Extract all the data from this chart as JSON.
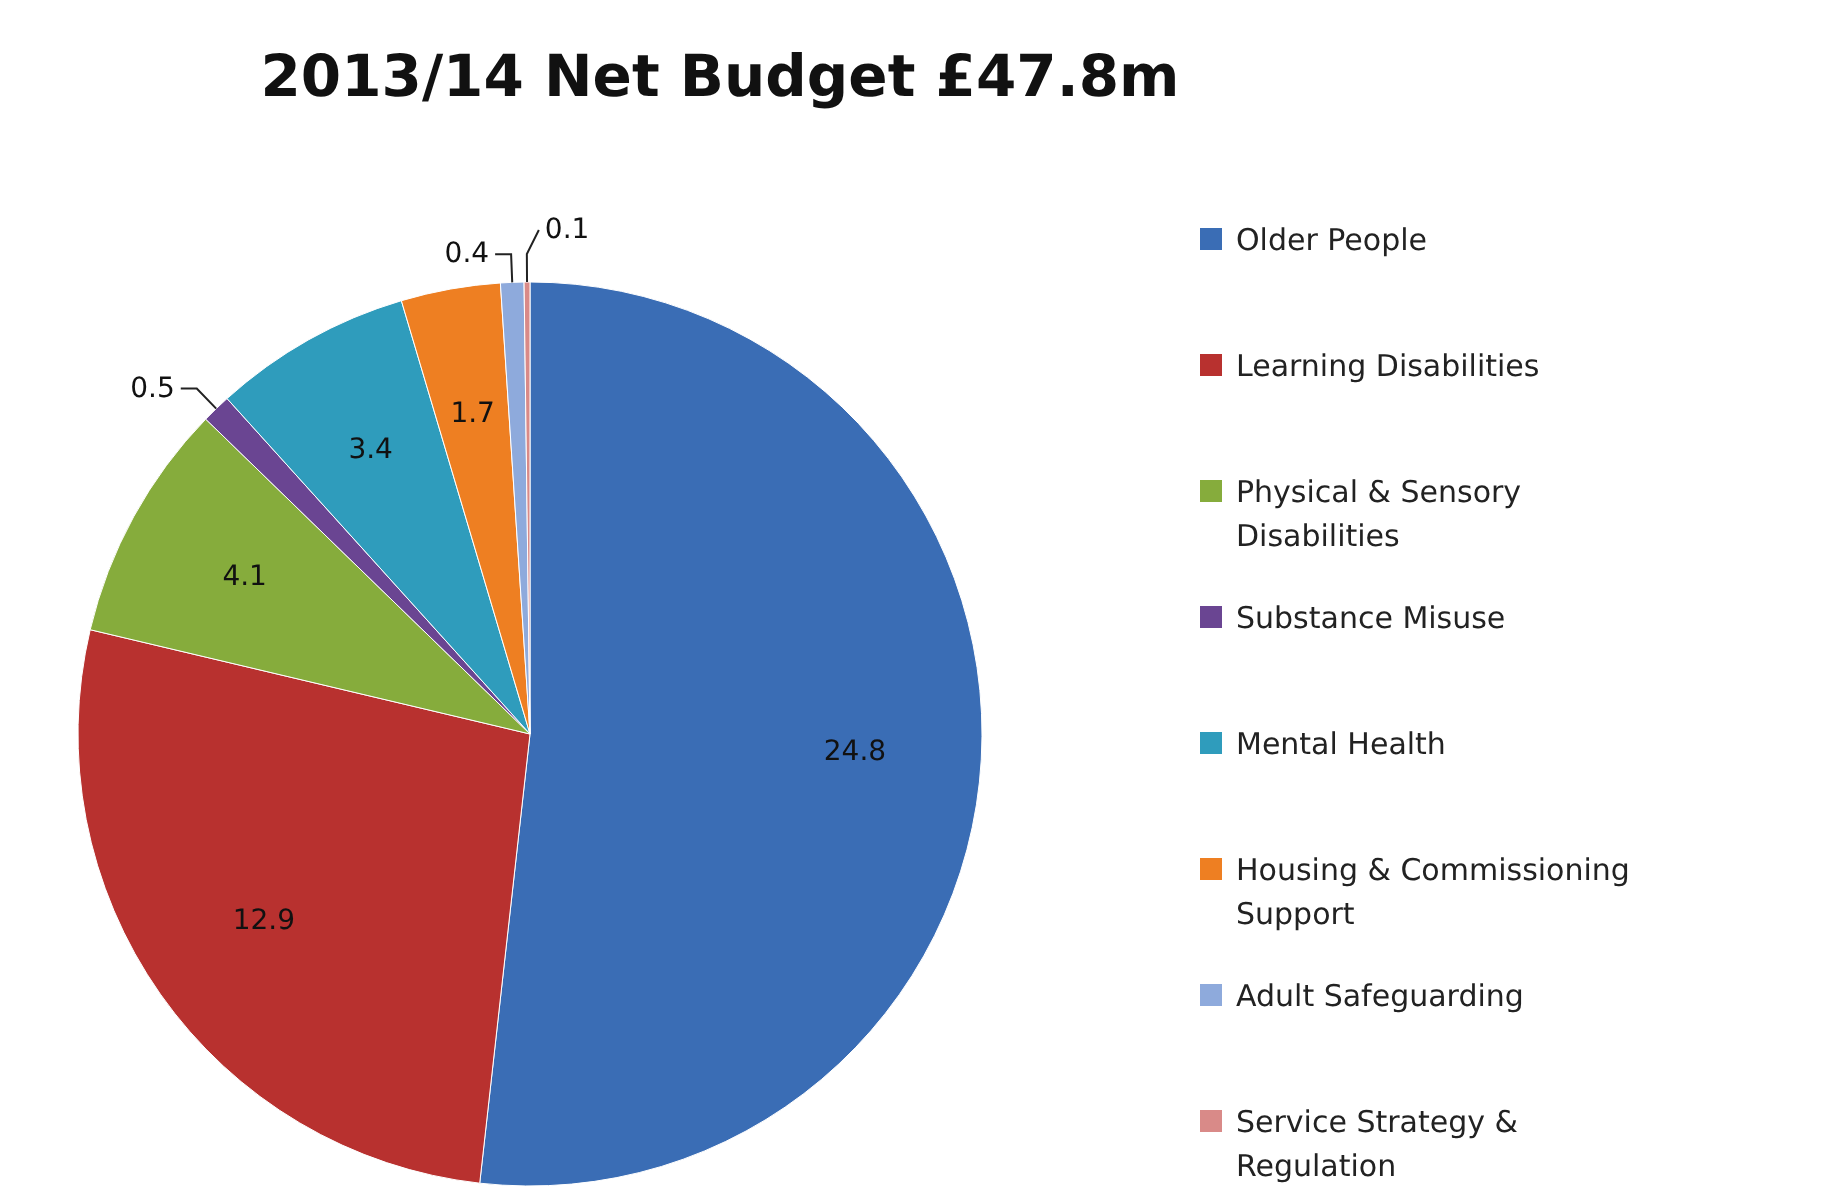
{
  "chart_data": {
    "type": "pie",
    "title": "2013/14 Net Budget £47.8m",
    "categories": [
      "Older People",
      "Learning Disabilities",
      "Physical & Sensory Disabilities",
      "Substance Misuse",
      "Mental Health",
      "Housing & Commissioning Support",
      "Adult Safeguarding",
      "Service Strategy & Regulation"
    ],
    "values": [
      24.8,
      12.9,
      4.1,
      0.5,
      3.4,
      1.7,
      0.4,
      0.1
    ],
    "colors": [
      "#3a6db5",
      "#b8312f",
      "#86ac3c",
      "#6a4592",
      "#2f9cbc",
      "#ee7f22",
      "#8eaadc",
      "#d98a88"
    ],
    "data_labels": true,
    "legend": "right"
  }
}
